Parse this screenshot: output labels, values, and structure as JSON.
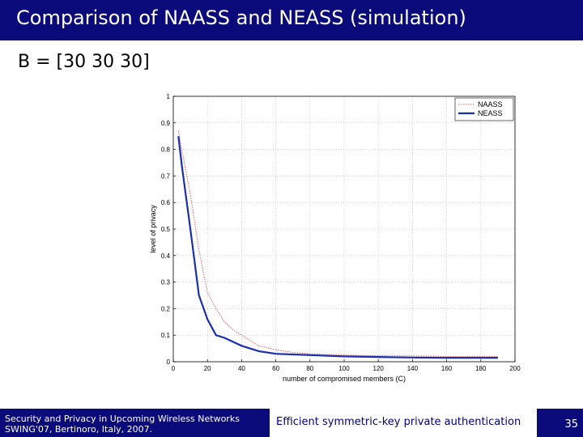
{
  "slide": {
    "title": "Comparison of NAASS and NEASS (simulation)",
    "subtitle": "B = [30 30 30]"
  },
  "footer": {
    "left_line1": "Security and Privacy in Upcoming Wireless Networks",
    "left_line2": "SWING'07, Bertinoro, Italy, 2007.",
    "center": "Efficient symmetric-key private authentication",
    "page": "35"
  },
  "colors": {
    "header_bg": "#0a0a7a",
    "naass": "#e06060",
    "neass": "#1a2fb0"
  },
  "chart_data": {
    "type": "line",
    "xlabel": "number of compromised members (C)",
    "ylabel": "level of privacy",
    "xlim": [
      0,
      200
    ],
    "ylim": [
      0,
      1
    ],
    "xticks": [
      0,
      20,
      40,
      60,
      80,
      100,
      120,
      140,
      160,
      180,
      200
    ],
    "yticks": [
      0,
      0.1,
      0.2,
      0.3,
      0.4,
      0.5,
      0.6,
      0.7,
      0.8,
      0.9,
      1
    ],
    "grid": true,
    "legend_position": "top-right",
    "series": [
      {
        "name": "NAASS",
        "style": "dotted",
        "x": [
          3,
          5,
          10,
          15,
          20,
          25,
          30,
          35,
          40,
          50,
          60,
          70,
          80,
          100,
          120,
          140,
          160,
          180,
          190
        ],
        "y": [
          0.87,
          0.8,
          0.63,
          0.42,
          0.26,
          0.2,
          0.15,
          0.12,
          0.1,
          0.06,
          0.045,
          0.035,
          0.03,
          0.025,
          0.023,
          0.022,
          0.02,
          0.02,
          0.02
        ]
      },
      {
        "name": "NEASS",
        "style": "solid",
        "x": [
          3,
          5,
          10,
          15,
          20,
          25,
          30,
          40,
          50,
          60,
          80,
          100,
          120,
          140,
          160,
          180,
          190
        ],
        "y": [
          0.85,
          0.74,
          0.5,
          0.25,
          0.16,
          0.1,
          0.09,
          0.06,
          0.04,
          0.03,
          0.025,
          0.02,
          0.018,
          0.016,
          0.015,
          0.015,
          0.015
        ]
      }
    ]
  }
}
